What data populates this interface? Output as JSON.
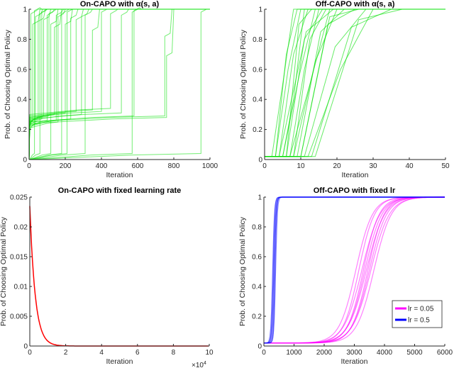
{
  "chart_data": [
    {
      "type": "line",
      "title": "On-CAPO with α(s, a)",
      "xlabel": "Iteration",
      "ylabel": "Prob. of Choosing Optimal Policy",
      "xlim": [
        0,
        1000
      ],
      "ylim": [
        0,
        1
      ],
      "xticks": [
        "0",
        "200",
        "400",
        "600",
        "800",
        "1000"
      ],
      "yticks": [
        "0",
        "0.2",
        "0.4",
        "0.6",
        "0.8",
        "1"
      ],
      "color": "#00e000",
      "series_description": "step curves: [plateau_value, jump_iteration, intermediate_value]",
      "series": [
        [
          0.22,
          20,
          0.9
        ],
        [
          0.2,
          35,
          0.95
        ],
        [
          0.24,
          50,
          0.92
        ],
        [
          0.0,
          60,
          0.97
        ],
        [
          0.25,
          80,
          0.93
        ],
        [
          0.22,
          100,
          0.96
        ],
        [
          0.0,
          120,
          0.9
        ],
        [
          0.26,
          140,
          0.88
        ],
        [
          0.21,
          160,
          0.95
        ],
        [
          0.0,
          180,
          0.97
        ],
        [
          0.27,
          200,
          0.9
        ],
        [
          0.23,
          230,
          0.94
        ],
        [
          0.28,
          260,
          0.93
        ],
        [
          0.0,
          310,
          0.96
        ],
        [
          0.29,
          350,
          0.86
        ],
        [
          0.3,
          450,
          0.97
        ],
        [
          0.27,
          510,
          0.96
        ],
        [
          0.0,
          570,
          0.98
        ],
        [
          0.25,
          750,
          0.82
        ],
        [
          0.24,
          760,
          0.69
        ],
        [
          0.2,
          10,
          0.97
        ],
        [
          0.0,
          30,
          0.99
        ],
        [
          0.23,
          70,
          0.98
        ],
        [
          0.25,
          110,
          0.97
        ],
        [
          0.22,
          150,
          0.96
        ],
        [
          0.0,
          210,
          0.98
        ],
        [
          0.26,
          290,
          0.95
        ],
        [
          0.28,
          400,
          0.98
        ],
        [
          0.25,
          580,
          0.99
        ],
        [
          0.0,
          950,
          0.98
        ]
      ]
    },
    {
      "type": "line",
      "title": "Off-CAPO with α(s, a)",
      "xlabel": "Iteration",
      "ylabel": "Prob. of Choosing Optimal Policy",
      "xlim": [
        0,
        50
      ],
      "ylim": [
        0,
        1
      ],
      "xticks": [
        "0",
        "10",
        "20",
        "30",
        "40",
        "50"
      ],
      "yticks": [
        "0",
        "0.2",
        "0.4",
        "0.6",
        "0.8",
        "1"
      ],
      "color": "#00e000",
      "series_description": "curves: [start_iteration, mid_plateau, finish_iteration]",
      "series": [
        [
          2,
          0.5,
          8
        ],
        [
          3,
          0.6,
          10
        ],
        [
          4,
          0.7,
          12
        ],
        [
          5,
          0.55,
          14
        ],
        [
          6,
          0.8,
          16
        ],
        [
          7,
          0.5,
          18
        ],
        [
          8,
          0.65,
          20
        ],
        [
          9,
          0.85,
          22
        ],
        [
          10,
          0.9,
          25
        ],
        [
          11,
          0.75,
          28
        ],
        [
          12,
          0.6,
          30
        ],
        [
          13,
          0.88,
          35
        ],
        [
          14,
          0.93,
          38
        ],
        [
          5,
          0.4,
          11
        ],
        [
          3,
          0.7,
          9
        ],
        [
          6,
          0.9,
          13
        ],
        [
          8,
          0.8,
          17
        ],
        [
          4,
          0.85,
          19
        ],
        [
          10,
          0.95,
          26
        ],
        [
          7,
          0.6,
          15
        ]
      ]
    },
    {
      "type": "line",
      "title": "On-CAPO with fixed learning rate",
      "xlabel": "Iteration",
      "ylabel": "Prob. of Choosing Optimal Policy",
      "x_multiplier": "×10^4",
      "xlim": [
        0,
        10
      ],
      "ylim": [
        0,
        0.025
      ],
      "xticks": [
        "0",
        "2",
        "4",
        "6",
        "8",
        "10"
      ],
      "yticks": [
        "0",
        "0.005",
        "0.01",
        "0.015",
        "0.02",
        "0.025"
      ],
      "exponent_label": "×10",
      "exponent_power": "4",
      "color": "#ff0000",
      "start_value": 0.0235,
      "decay_scale": 0.3
    },
    {
      "type": "line",
      "title": "Off-CAPO with fixed lr",
      "xlabel": "Iteration",
      "ylabel": "Prob. of Choosing Optimal Policy",
      "xlim": [
        0,
        6000
      ],
      "ylim": [
        0,
        1
      ],
      "xticks": [
        "0",
        "1000",
        "2000",
        "3000",
        "4000",
        "5000",
        "6000"
      ],
      "yticks": [
        "0",
        "0.2",
        "0.4",
        "0.6",
        "0.8",
        "1"
      ],
      "legend": {
        "position": "bottom-right",
        "entries": [
          {
            "label": "lr = 0.05",
            "color": "#ff00ff"
          },
          {
            "label": "lr = 0.5",
            "color": "#0000ff"
          }
        ]
      },
      "series": [
        {
          "name": "lr = 0.05",
          "color": "#ff00ff",
          "baseline": 0.02,
          "midpoints": [
            3050,
            3150,
            3250,
            3300,
            3350,
            3400,
            3450,
            3500,
            3550,
            3650
          ],
          "width": 280
        },
        {
          "name": "lr = 0.5",
          "color": "#0000ff",
          "baseline": 0.02,
          "midpoints": [
            290,
            310,
            330,
            350,
            370,
            390
          ],
          "width": 28
        }
      ]
    }
  ]
}
